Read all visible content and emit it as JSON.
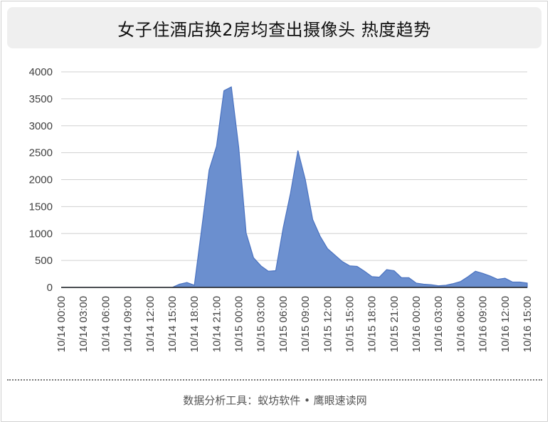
{
  "title": "女子住酒店换2房均查出摄像头 热度趋势",
  "footer": "数据分析工具：蚁坊软件 • 鹰眼速读网",
  "colors": {
    "area_fill": "#6b8fcf",
    "area_stroke": "#4a72c0",
    "grid": "#d0d0d0",
    "axis": "#1f1f1f"
  },
  "chart_data": {
    "type": "area",
    "title": "女子住酒店换2房均查出摄像头 热度趋势",
    "xlabel": "",
    "ylabel": "",
    "ylim": [
      0,
      4000
    ],
    "yticks": [
      0,
      500,
      1000,
      1500,
      2000,
      2500,
      3000,
      3500,
      4000
    ],
    "grid": true,
    "legend": "none",
    "x_start": "10/14 00:00",
    "x_end": "10/16 15:00",
    "x_ticks": [
      "10/14 00:00",
      "10/14 03:00",
      "10/14 06:00",
      "10/14 09:00",
      "10/14 12:00",
      "10/14 15:00",
      "10/14 18:00",
      "10/14 21:00",
      "10/15 00:00",
      "10/15 03:00",
      "10/15 06:00",
      "10/15 09:00",
      "10/15 12:00",
      "10/15 15:00",
      "10/15 18:00",
      "10/15 21:00",
      "10/16 00:00",
      "10/16 03:00",
      "10/16 06:00",
      "10/16 09:00",
      "10/16 12:00",
      "10/16 15:00"
    ],
    "series": [
      {
        "points": [
          [
            "10/14 00:00",
            0
          ],
          [
            "10/14 01:00",
            0
          ],
          [
            "10/14 02:00",
            0
          ],
          [
            "10/14 03:00",
            0
          ],
          [
            "10/14 04:00",
            0
          ],
          [
            "10/14 05:00",
            0
          ],
          [
            "10/14 06:00",
            0
          ],
          [
            "10/14 07:00",
            0
          ],
          [
            "10/14 08:00",
            0
          ],
          [
            "10/14 09:00",
            0
          ],
          [
            "10/14 10:00",
            0
          ],
          [
            "10/14 11:00",
            0
          ],
          [
            "10/14 12:00",
            0
          ],
          [
            "10/14 13:00",
            0
          ],
          [
            "10/14 14:00",
            0
          ],
          [
            "10/14 15:00",
            0
          ],
          [
            "10/14 16:00",
            60
          ],
          [
            "10/14 17:00",
            90
          ],
          [
            "10/14 18:00",
            40
          ],
          [
            "10/14 19:00",
            1100
          ],
          [
            "10/14 20:00",
            2180
          ],
          [
            "10/14 21:00",
            2620
          ],
          [
            "10/14 22:00",
            3650
          ],
          [
            "10/14 23:00",
            3720
          ],
          [
            "10/15 00:00",
            2600
          ],
          [
            "10/15 01:00",
            1010
          ],
          [
            "10/15 02:00",
            550
          ],
          [
            "10/15 03:00",
            400
          ],
          [
            "10/15 04:00",
            300
          ],
          [
            "10/15 05:00",
            310
          ],
          [
            "10/15 06:00",
            1100
          ],
          [
            "10/15 07:00",
            1750
          ],
          [
            "10/15 08:00",
            2540
          ],
          [
            "10/15 09:00",
            2000
          ],
          [
            "10/15 10:00",
            1260
          ],
          [
            "10/15 11:00",
            950
          ],
          [
            "10/15 12:00",
            720
          ],
          [
            "10/15 13:00",
            600
          ],
          [
            "10/15 14:00",
            480
          ],
          [
            "10/15 15:00",
            400
          ],
          [
            "10/15 16:00",
            390
          ],
          [
            "10/15 17:00",
            300
          ],
          [
            "10/15 18:00",
            200
          ],
          [
            "10/15 19:00",
            190
          ],
          [
            "10/15 20:00",
            330
          ],
          [
            "10/15 21:00",
            310
          ],
          [
            "10/15 22:00",
            180
          ],
          [
            "10/15 23:00",
            180
          ],
          [
            "10/16 00:00",
            80
          ],
          [
            "10/16 01:00",
            60
          ],
          [
            "10/16 02:00",
            50
          ],
          [
            "10/16 03:00",
            30
          ],
          [
            "10/16 04:00",
            40
          ],
          [
            "10/16 05:00",
            70
          ],
          [
            "10/16 06:00",
            110
          ],
          [
            "10/16 07:00",
            200
          ],
          [
            "10/16 08:00",
            300
          ],
          [
            "10/16 09:00",
            260
          ],
          [
            "10/16 10:00",
            210
          ],
          [
            "10/16 11:00",
            150
          ],
          [
            "10/16 12:00",
            170
          ],
          [
            "10/16 13:00",
            100
          ],
          [
            "10/16 14:00",
            100
          ],
          [
            "10/16 15:00",
            80
          ]
        ]
      }
    ]
  }
}
